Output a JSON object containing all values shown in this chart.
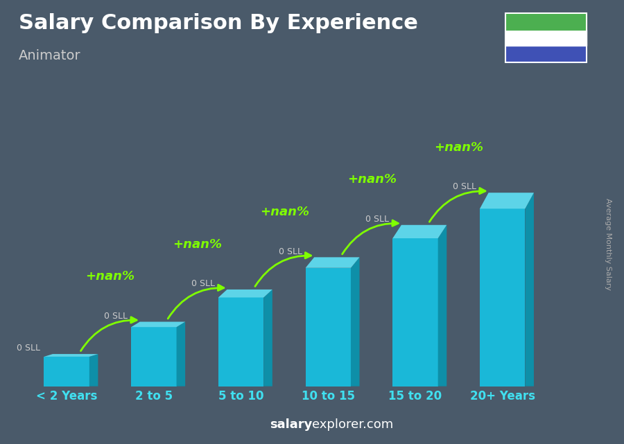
{
  "title": "Salary Comparison By Experience",
  "subtitle": "Animator",
  "categories": [
    "< 2 Years",
    "2 to 5",
    "5 to 10",
    "10 to 15",
    "15 to 20",
    "20+ Years"
  ],
  "values": [
    1,
    2,
    3,
    4,
    5,
    6
  ],
  "bar_color_main": "#1ab8d8",
  "bar_color_side": "#0e8fa8",
  "bar_color_top": "#5dd4e8",
  "bar_labels": [
    "0 SLL",
    "0 SLL",
    "0 SLL",
    "0 SLL",
    "0 SLL",
    "0 SLL"
  ],
  "pct_labels": [
    "+nan%",
    "+nan%",
    "+nan%",
    "+nan%",
    "+nan%"
  ],
  "title_color": "#ffffff",
  "subtitle_color": "#cccccc",
  "xlabel_color": "#40e0f0",
  "bar_label_color": "#cccccc",
  "pct_color": "#7fff00",
  "bg_color": "#4a5a6a",
  "ylabel_text": "Average Monthly Salary",
  "watermark_salary": "salary",
  "watermark_explorer": "explorer.com",
  "flag_colors": [
    "#4caf50",
    "#ffffff",
    "#3f51b5"
  ],
  "figsize": [
    9.0,
    6.41
  ],
  "dpi": 100
}
